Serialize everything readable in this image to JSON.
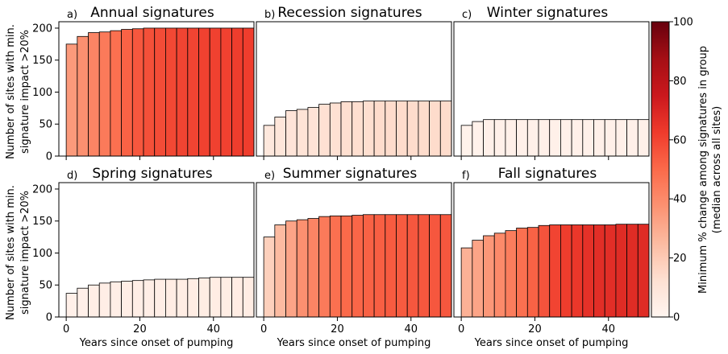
{
  "chart_data": {
    "type": "bar",
    "x_step": 3,
    "x_ticks": [
      0,
      20,
      40
    ],
    "y_ticks": [
      0,
      50,
      100,
      150,
      200
    ],
    "ylim": [
      0,
      210
    ],
    "xlim": [
      -2,
      51
    ],
    "ylabel": [
      "Number of sites with min.",
      "signature impact >20%"
    ],
    "xlabel": "Years since onset of pumping",
    "colorbar": {
      "label": [
        "Minimum % change among signatures in group",
        "(median across all sites)"
      ],
      "ticks": [
        0,
        20,
        40,
        60,
        80,
        100
      ],
      "range": [
        0,
        100
      ],
      "colormap": "Reds"
    },
    "panels": [
      {
        "letter": "a)",
        "title": "Annual signatures",
        "x": [
          0,
          3,
          6,
          9,
          12,
          15,
          18,
          21,
          24,
          27,
          30,
          33,
          36,
          39,
          42,
          45,
          48
        ],
        "values": [
          175,
          187,
          193,
          194,
          196,
          198,
          199,
          200,
          200,
          200,
          200,
          200,
          200,
          200,
          200,
          200,
          200
        ],
        "colors": [
          35,
          38,
          42,
          45,
          48,
          52,
          55,
          57,
          58,
          59,
          60,
          60,
          61,
          61,
          61,
          62,
          62
        ]
      },
      {
        "letter": "b)",
        "title": "Recession signatures",
        "x": [
          0,
          3,
          6,
          9,
          12,
          15,
          18,
          21,
          24,
          27,
          30,
          33,
          36,
          39,
          42,
          45,
          48
        ],
        "values": [
          48,
          61,
          71,
          73,
          76,
          81,
          83,
          85,
          85,
          86,
          86,
          86,
          86,
          86,
          86,
          86,
          86
        ],
        "colors": [
          8,
          9,
          10,
          11,
          11,
          12,
          12,
          13,
          13,
          13,
          14,
          14,
          14,
          14,
          14,
          14,
          14
        ]
      },
      {
        "letter": "c)",
        "title": "Winter signatures",
        "x": [
          0,
          3,
          6,
          9,
          12,
          15,
          18,
          21,
          24,
          27,
          30,
          33,
          36,
          39,
          42,
          45,
          48
        ],
        "values": [
          48,
          54,
          57,
          57,
          57,
          57,
          57,
          57,
          57,
          57,
          57,
          57,
          57,
          57,
          57,
          57,
          57
        ],
        "colors": [
          2,
          2,
          3,
          3,
          3,
          3,
          3,
          3,
          3,
          3,
          3,
          3,
          3,
          3,
          3,
          3,
          3
        ]
      },
      {
        "letter": "d)",
        "title": "Spring signatures",
        "x": [
          0,
          3,
          6,
          9,
          12,
          15,
          18,
          21,
          24,
          27,
          30,
          33,
          36,
          39,
          42,
          45,
          48
        ],
        "values": [
          37,
          45,
          50,
          53,
          55,
          56,
          57,
          58,
          59,
          59,
          59,
          60,
          61,
          62,
          62,
          62,
          62
        ],
        "colors": [
          3,
          3,
          4,
          4,
          4,
          4,
          4,
          4,
          4,
          5,
          5,
          5,
          5,
          5,
          5,
          5,
          5
        ]
      },
      {
        "letter": "e)",
        "title": "Summer signatures",
        "x": [
          0,
          3,
          6,
          9,
          12,
          15,
          18,
          21,
          24,
          27,
          30,
          33,
          36,
          39,
          42,
          45,
          48
        ],
        "values": [
          125,
          144,
          150,
          152,
          154,
          157,
          158,
          158,
          159,
          160,
          160,
          160,
          160,
          160,
          160,
          160,
          160
        ],
        "colors": [
          18,
          25,
          32,
          38,
          42,
          45,
          48,
          50,
          51,
          52,
          53,
          54,
          54,
          55,
          55,
          55,
          55
        ]
      },
      {
        "letter": "f)",
        "title": "Fall signatures",
        "x": [
          0,
          3,
          6,
          9,
          12,
          15,
          18,
          21,
          24,
          27,
          30,
          33,
          36,
          39,
          42,
          45,
          48
        ],
        "values": [
          108,
          120,
          127,
          131,
          135,
          139,
          140,
          143,
          144,
          144,
          144,
          144,
          144,
          144,
          145,
          145,
          145
        ],
        "colors": [
          28,
          32,
          36,
          40,
          44,
          48,
          52,
          56,
          60,
          62,
          64,
          66,
          67,
          67,
          68,
          68,
          68
        ]
      }
    ]
  }
}
